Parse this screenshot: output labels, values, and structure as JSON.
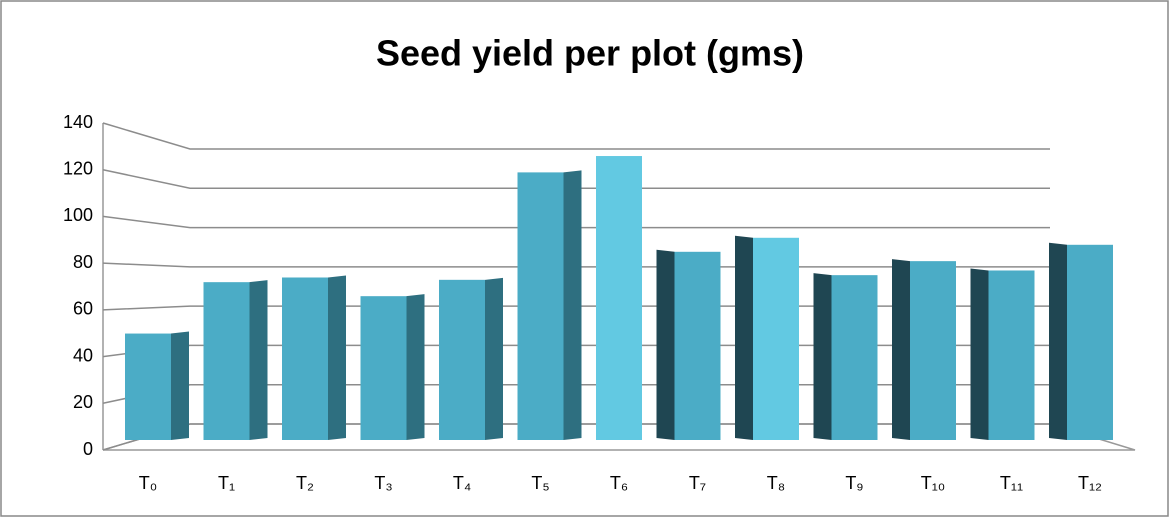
{
  "chart_data": {
    "type": "bar3d",
    "title": "Seed yield per plot (gms)",
    "categories": [
      "T₀",
      "T₁",
      "T₂",
      "T₃",
      "T₄",
      "T₅",
      "T₆",
      "T₇",
      "T₈",
      "T₉",
      "T₁₀",
      "T₁₁",
      "T₁₂"
    ],
    "values": [
      49,
      71,
      73,
      65,
      72,
      118,
      125,
      84,
      90,
      74,
      80,
      76,
      87
    ],
    "color": "#4bacc6",
    "ylim": [
      0,
      140
    ],
    "yticks": [
      0,
      20,
      40,
      60,
      80,
      100,
      120,
      140
    ],
    "grid": true
  }
}
